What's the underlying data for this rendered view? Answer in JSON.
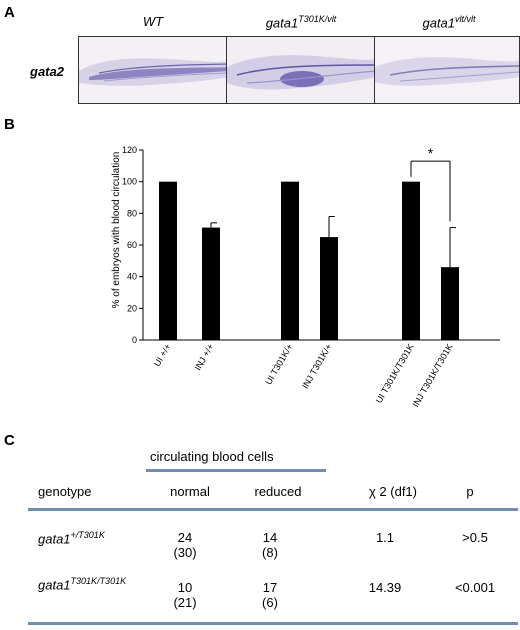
{
  "panel_a": {
    "letter": "A",
    "images": [
      {
        "title_base": "WT",
        "title_sup": ""
      },
      {
        "title_base": "gata1",
        "title_sup": "T301K/vlt"
      },
      {
        "title_base": "gata1",
        "title_sup": "vlt/vlt"
      }
    ],
    "row_label": "gata2"
  },
  "panel_b": {
    "letter": "B",
    "significance": "*"
  },
  "chart_data": {
    "type": "bar",
    "ylabel": "% of embryos with blood circulation",
    "ylim": [
      0,
      120
    ],
    "yticks": [
      0,
      20,
      40,
      60,
      80,
      100,
      120
    ],
    "categories": [
      "UI +/+",
      "INJ +/+",
      "UI T301K/+",
      "INJ T301K/+",
      "UI T301K/T301K",
      "INJ T301K/T301K"
    ],
    "values": [
      100,
      71,
      100,
      65,
      100,
      46
    ],
    "errors": [
      0,
      3,
      0,
      13,
      0,
      25
    ],
    "bar_color": "#000000"
  },
  "panel_c": {
    "letter": "C",
    "group_header": "circulating blood cells",
    "headers": {
      "genotype": "genotype",
      "normal": "normal",
      "reduced": "reduced",
      "chi": "χ 2 (df1)",
      "p": "p"
    },
    "rows": [
      {
        "gen_base": "gata1",
        "gen_sup": "+/T301K",
        "normal": "24",
        "normal_exp": "(30)",
        "reduced": "14",
        "reduced_exp": "(8)",
        "chi": "1.1",
        "p": ">0.5"
      },
      {
        "gen_base": "gata1",
        "gen_sup": "T301K/T301K",
        "normal": "10",
        "normal_exp": "(21)",
        "reduced": "17",
        "reduced_exp": "(6)",
        "chi": "14.39",
        "p": "<0.001"
      }
    ]
  }
}
